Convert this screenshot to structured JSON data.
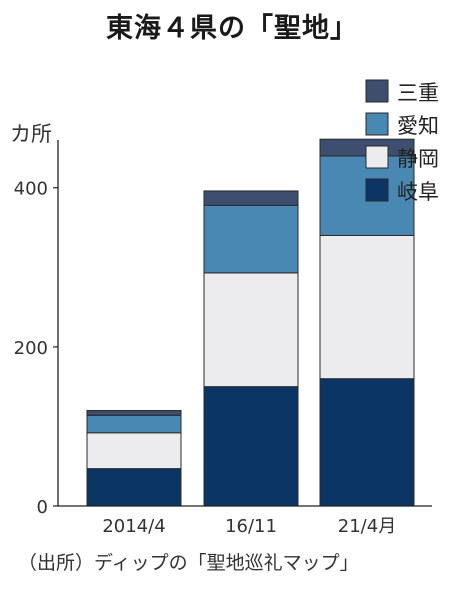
{
  "title": "東海４県の「聖地」",
  "unit_label": "カ所",
  "source": "（出所）ディップの「聖地巡礼マップ」",
  "colors": {
    "三重": "#3d4e6e",
    "愛知": "#4a88b4",
    "静岡": "#ececee",
    "岐阜": "#0b3565"
  },
  "chart_data": {
    "type": "bar",
    "stacked": true,
    "categories": [
      "2014/4",
      "16/11",
      "21/4月"
    ],
    "series": [
      {
        "name": "岐阜",
        "values": [
          47,
          150,
          160
        ]
      },
      {
        "name": "静岡",
        "values": [
          45,
          143,
          180
        ]
      },
      {
        "name": "愛知",
        "values": [
          22,
          85,
          100
        ]
      },
      {
        "name": "三重",
        "values": [
          6,
          18,
          21
        ]
      }
    ],
    "legend_order": [
      "三重",
      "愛知",
      "静岡",
      "岐阜"
    ],
    "ylabel": "カ所",
    "ylim": [
      0,
      460
    ],
    "yticks": [
      0,
      200,
      400
    ],
    "grid": false,
    "legend_position": "top-right"
  }
}
